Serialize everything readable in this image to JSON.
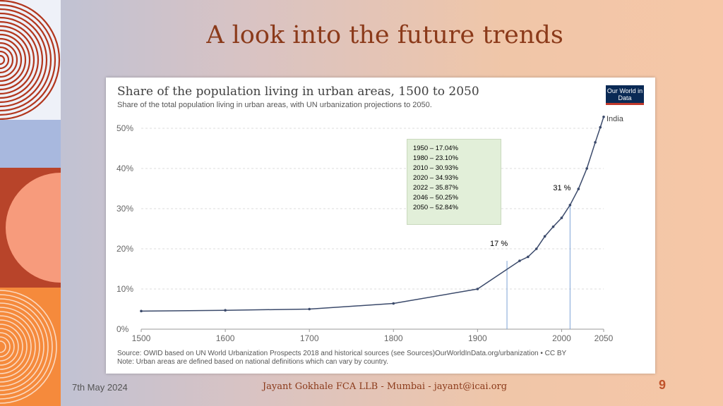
{
  "slide": {
    "title": "A look into the future trends",
    "footer_date": "7th May 2024",
    "footer_author": "Jayant Gokhale FCA LLB - Mumbai - jayant@icai.org",
    "page_number": "9",
    "colors": {
      "accent": "#8b3a1a",
      "orange": "#f58a3c",
      "salmon": "#f79b7c",
      "rust": "#c0532a"
    }
  },
  "logo": {
    "text": "Our World in Data"
  },
  "source_note": {
    "line1": "Source: OWID based on UN World Urbanization Prospects 2018 and historical sources (see Sources)OurWorldInData.org/urbanization • CC BY",
    "line2": "Note: Urban areas are defined based on national definitions which can vary by country."
  },
  "callout": {
    "lines": [
      "1950 – 17.04%",
      "1980 – 23.10%",
      "2010 – 30.93%",
      "2020 – 34.93%",
      "2022 – 35.87%",
      "2046 – 50.25%",
      "2050 – 52.84%"
    ]
  },
  "markers": [
    {
      "year": 1950,
      "label": "17 %"
    },
    {
      "year": 2010,
      "label": "31 %"
    }
  ],
  "chart_data": {
    "type": "line",
    "title": "Share of the population living in urban areas, 1500 to 2050",
    "subtitle": "Share of the total population living in urban areas, with UN urbanization projections to 2050.",
    "xlabel": "",
    "ylabel": "",
    "xlim": [
      1500,
      2050
    ],
    "ylim": [
      0,
      50
    ],
    "x_ticks": [
      1500,
      1600,
      1700,
      1800,
      1900,
      2000,
      2050
    ],
    "y_ticks": [
      0,
      10,
      20,
      30,
      40,
      50
    ],
    "y_tick_labels": [
      "0%",
      "10%",
      "20%",
      "30%",
      "40%",
      "50%"
    ],
    "grid": true,
    "series": [
      {
        "name": "India",
        "color": "#3b4a6b",
        "x": [
          1500,
          1600,
          1700,
          1800,
          1900,
          1950,
          1960,
          1970,
          1980,
          1990,
          2000,
          2010,
          2020,
          2030,
          2040,
          2046,
          2050
        ],
        "y": [
          4.5,
          4.7,
          5.0,
          6.4,
          10.0,
          17.0,
          18.0,
          20.0,
          23.1,
          25.5,
          27.7,
          30.9,
          34.9,
          40.0,
          46.5,
          50.25,
          52.84
        ]
      }
    ]
  }
}
